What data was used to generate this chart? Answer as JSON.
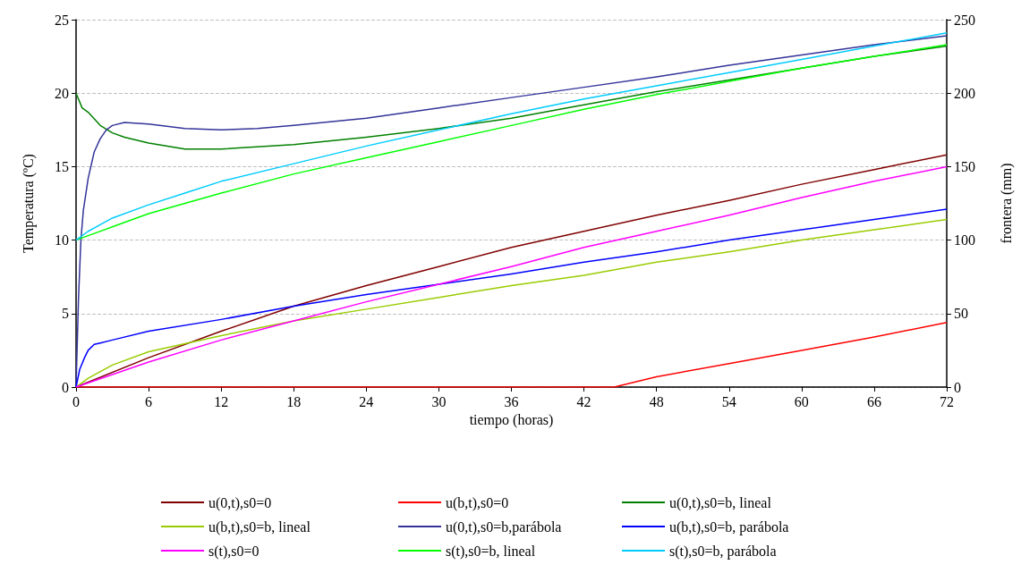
{
  "chart_data": {
    "type": "line",
    "xlabel": "tiempo (horas)",
    "ylabel": "Temperatura (ºC)",
    "y2label": "frontera (mm)",
    "xlim": [
      0,
      72
    ],
    "xticks": [
      0,
      6,
      12,
      18,
      24,
      30,
      36,
      42,
      48,
      54,
      60,
      66,
      72
    ],
    "ylim": [
      0,
      25
    ],
    "yticks": [
      0,
      5,
      10,
      15,
      20,
      25
    ],
    "y2lim": [
      0,
      250
    ],
    "y2ticks": [
      0,
      50,
      100,
      150,
      200,
      250
    ],
    "grid": "y",
    "legend": "bottom",
    "marker": "none",
    "line_style": "solid",
    "series": [
      {
        "name": "u(0,t),s0=0",
        "color": "#800000",
        "x": [
          0,
          6,
          12,
          18,
          24,
          30,
          36,
          42,
          48,
          54,
          60,
          66,
          72
        ],
        "values": [
          0,
          2.0,
          3.8,
          5.5,
          6.9,
          8.2,
          9.5,
          10.6,
          11.7,
          12.7,
          13.8,
          14.8,
          15.8
        ]
      },
      {
        "name": "u(b,t),s0=0",
        "color": "#ff0000",
        "x": [
          0,
          44.5,
          48,
          54,
          60,
          66,
          72
        ],
        "values": [
          0,
          0,
          0.7,
          1.6,
          2.5,
          3.4,
          4.4
        ]
      },
      {
        "name": "u(0,t),s0=b, lineal",
        "color": "#008000",
        "x": [
          0,
          0.5,
          1,
          2,
          3,
          4,
          6,
          9,
          12,
          18,
          24,
          30,
          36,
          42,
          48,
          54,
          60,
          66,
          72
        ],
        "values": [
          20,
          19,
          18.7,
          17.8,
          17.3,
          17.0,
          16.6,
          16.2,
          16.2,
          16.5,
          17.0,
          17.6,
          18.3,
          19.2,
          20.1,
          20.9,
          21.7,
          22.5,
          23.2
        ]
      },
      {
        "name": "u(b,t),s0=b, lineal",
        "color": "#99cc00",
        "x": [
          0,
          1,
          3,
          6,
          12,
          18,
          24,
          30,
          36,
          42,
          48,
          54,
          60,
          66,
          72
        ],
        "values": [
          0,
          0.6,
          1.5,
          2.4,
          3.5,
          4.5,
          5.3,
          6.1,
          6.9,
          7.6,
          8.5,
          9.2,
          10.0,
          10.7,
          11.4
        ]
      },
      {
        "name": "u(0,t),s0=b,parábola",
        "color": "#333399",
        "x": [
          0,
          0.2,
          0.4,
          0.6,
          1,
          1.5,
          2,
          2.5,
          3,
          4,
          6,
          9,
          12,
          15,
          18,
          24,
          30,
          36,
          42,
          48,
          54,
          60,
          66,
          72
        ],
        "values": [
          0,
          6,
          10,
          12,
          14.2,
          16,
          16.9,
          17.5,
          17.8,
          18.0,
          17.9,
          17.6,
          17.5,
          17.6,
          17.8,
          18.3,
          19.0,
          19.7,
          20.4,
          21.1,
          21.9,
          22.6,
          23.3,
          23.9
        ]
      },
      {
        "name": "u(b,t),s0=b, parábola",
        "color": "#0000ff",
        "x": [
          0,
          0.3,
          0.7,
          1,
          1.5,
          2,
          3,
          6,
          12,
          18,
          24,
          30,
          36,
          42,
          48,
          54,
          60,
          66,
          72
        ],
        "values": [
          0,
          1.2,
          2.0,
          2.5,
          2.9,
          3.0,
          3.2,
          3.8,
          4.6,
          5.5,
          6.3,
          7.0,
          7.7,
          8.5,
          9.2,
          10.0,
          10.7,
          11.4,
          12.1
        ]
      },
      {
        "name": "s(t),s0=0",
        "color": "#ff00ff",
        "axis": "y2",
        "x": [
          0,
          6,
          12,
          18,
          24,
          30,
          36,
          42,
          48,
          54,
          60,
          66,
          72
        ],
        "values": [
          0,
          17,
          32,
          45,
          58,
          70,
          82,
          95,
          106,
          117,
          129,
          140,
          150
        ]
      },
      {
        "name": "s(t),s0=b, lineal",
        "color": "#00ff00",
        "axis": "y2",
        "x": [
          0,
          1,
          3,
          6,
          9,
          12,
          18,
          24,
          30,
          36,
          42,
          48,
          54,
          60,
          66,
          72
        ],
        "values": [
          100,
          103,
          109,
          118,
          125,
          132,
          145,
          156,
          167,
          178,
          189,
          199,
          208,
          217,
          225,
          233
        ]
      },
      {
        "name": "s(t),s0=b, parábola",
        "color": "#00ccff",
        "axis": "y2",
        "x": [
          0,
          1,
          3,
          6,
          9,
          12,
          18,
          24,
          30,
          36,
          42,
          48,
          54,
          60,
          66,
          72
        ],
        "values": [
          100,
          106,
          115,
          124,
          132,
          140,
          152,
          164,
          175,
          186,
          196,
          205,
          214,
          223,
          232,
          241
        ]
      }
    ]
  }
}
